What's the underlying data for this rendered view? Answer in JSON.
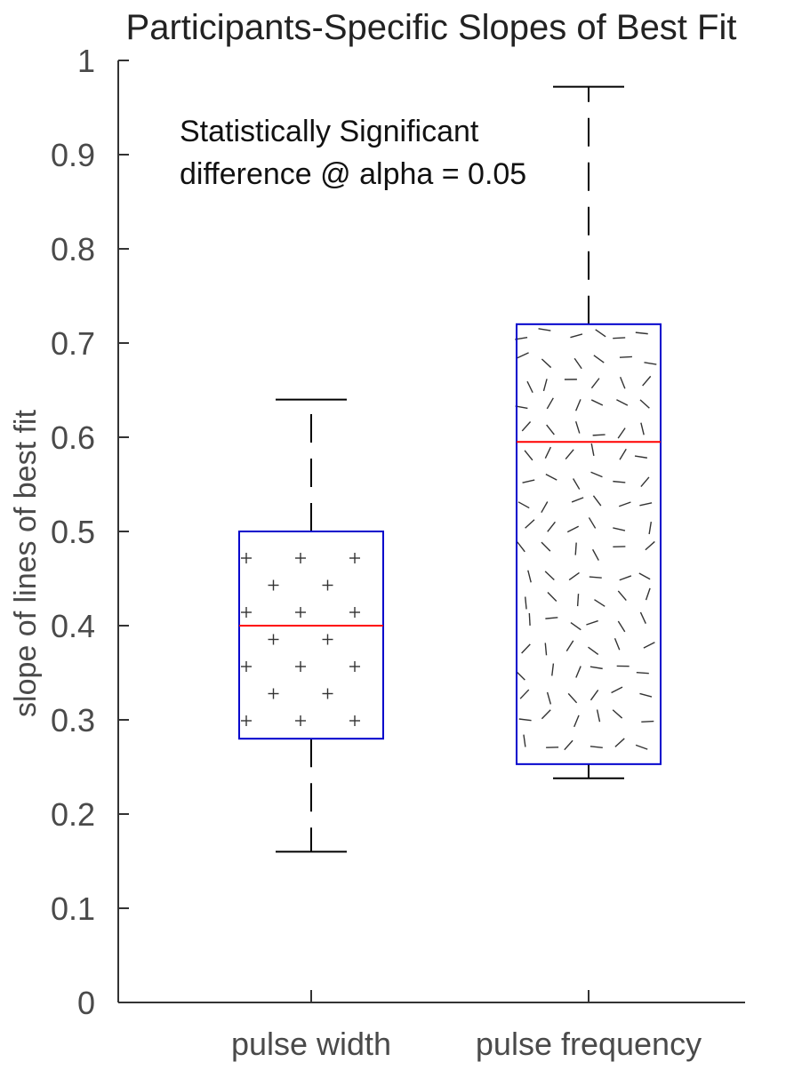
{
  "chart_data": {
    "type": "box",
    "title": "Participants-Specific Slopes of Best Fit",
    "xlabel": "",
    "ylabel": "slope of lines of best fit",
    "ylim": [
      0,
      1
    ],
    "yticks": [
      0,
      0.1,
      0.2,
      0.3,
      0.4,
      0.5,
      0.6,
      0.7,
      0.8,
      0.9,
      1
    ],
    "ytick_labels": [
      "0",
      "0.1",
      "0.2",
      "0.3",
      "0.4",
      "0.5",
      "0.6",
      "0.7",
      "0.8",
      "0.9",
      "1"
    ],
    "grid": false,
    "categories": [
      "pulse width",
      "pulse frequency"
    ],
    "boxes": [
      {
        "category": "pulse width",
        "whisker_low": 0.16,
        "q1": 0.28,
        "median": 0.4,
        "q3": 0.5,
        "whisker_high": 0.64,
        "pattern": "plus"
      },
      {
        "category": "pulse frequency",
        "whisker_low": 0.238,
        "q1": 0.253,
        "median": 0.595,
        "q3": 0.72,
        "whisker_high": 0.972,
        "pattern": "dashes"
      }
    ],
    "annotation_lines": [
      "Statistically Significant",
      "difference @ alpha = 0.05"
    ],
    "colors": {
      "box_edge": "#0000cc",
      "median": "#ff0000",
      "whisker": "#000000",
      "axis": "#333333",
      "pattern": "#333333"
    }
  }
}
